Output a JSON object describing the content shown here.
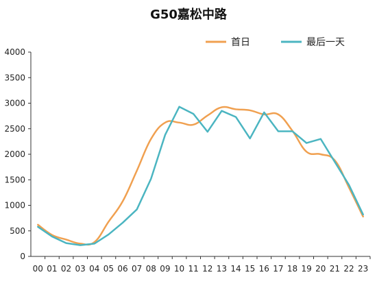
{
  "chart_data": {
    "type": "line",
    "title": "G50嘉松中路",
    "xlabel": "",
    "ylabel": "",
    "categories": [
      "00",
      "01",
      "02",
      "03",
      "04",
      "05",
      "06",
      "07",
      "08",
      "09",
      "10",
      "11",
      "12",
      "13",
      "14",
      "15",
      "16",
      "17",
      "18",
      "19",
      "20",
      "21",
      "22",
      "23"
    ],
    "ylim": [
      0,
      4000
    ],
    "yticks": [
      0,
      500,
      1000,
      1500,
      2000,
      2500,
      3000,
      3500,
      4000
    ],
    "grid": false,
    "legend_position": "top-right",
    "series": [
      {
        "name": "首日",
        "color": "#F0A050",
        "values": [
          620,
          420,
          330,
          250,
          280,
          680,
          1080,
          1680,
          2300,
          2620,
          2620,
          2580,
          2760,
          2920,
          2880,
          2860,
          2780,
          2780,
          2460,
          2050,
          2000,
          1880,
          1350,
          780
        ]
      },
      {
        "name": "最后一天",
        "color": "#4BB5C1",
        "values": [
          580,
          390,
          260,
          220,
          250,
          430,
          660,
          920,
          1520,
          2380,
          2930,
          2790,
          2440,
          2850,
          2730,
          2310,
          2820,
          2450,
          2450,
          2220,
          2300,
          1850,
          1400,
          820
        ]
      }
    ]
  }
}
